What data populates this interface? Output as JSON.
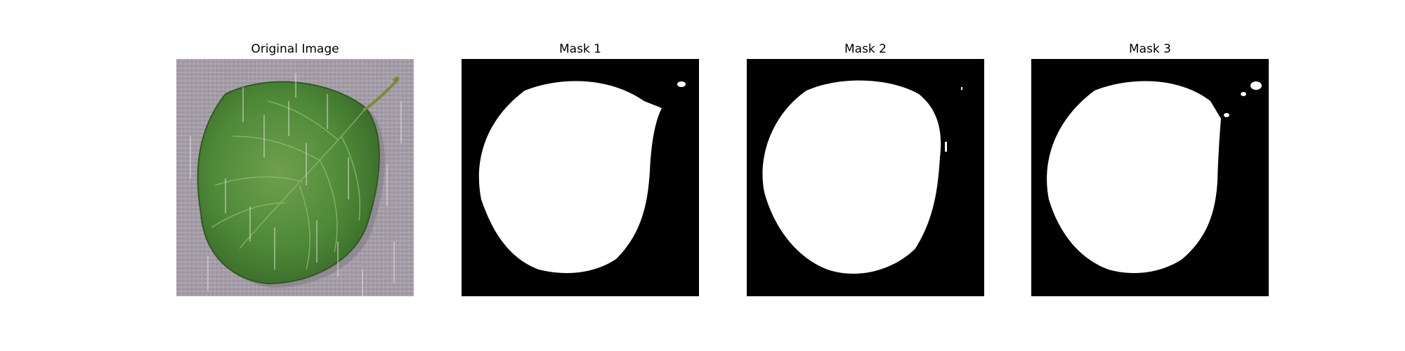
{
  "panels": [
    {
      "title": "Original Image",
      "kind": "photo"
    },
    {
      "title": "Mask 1",
      "kind": "mask"
    },
    {
      "title": "Mask 2",
      "kind": "mask"
    },
    {
      "title": "Mask 3",
      "kind": "mask"
    }
  ],
  "colors": {
    "background": "#ffffff",
    "mask_background": "#000000",
    "mask_foreground": "#ffffff",
    "photo_background": "#a49ea6",
    "leaf_dark": "#3f7530",
    "leaf_light": "#6fa04c"
  }
}
